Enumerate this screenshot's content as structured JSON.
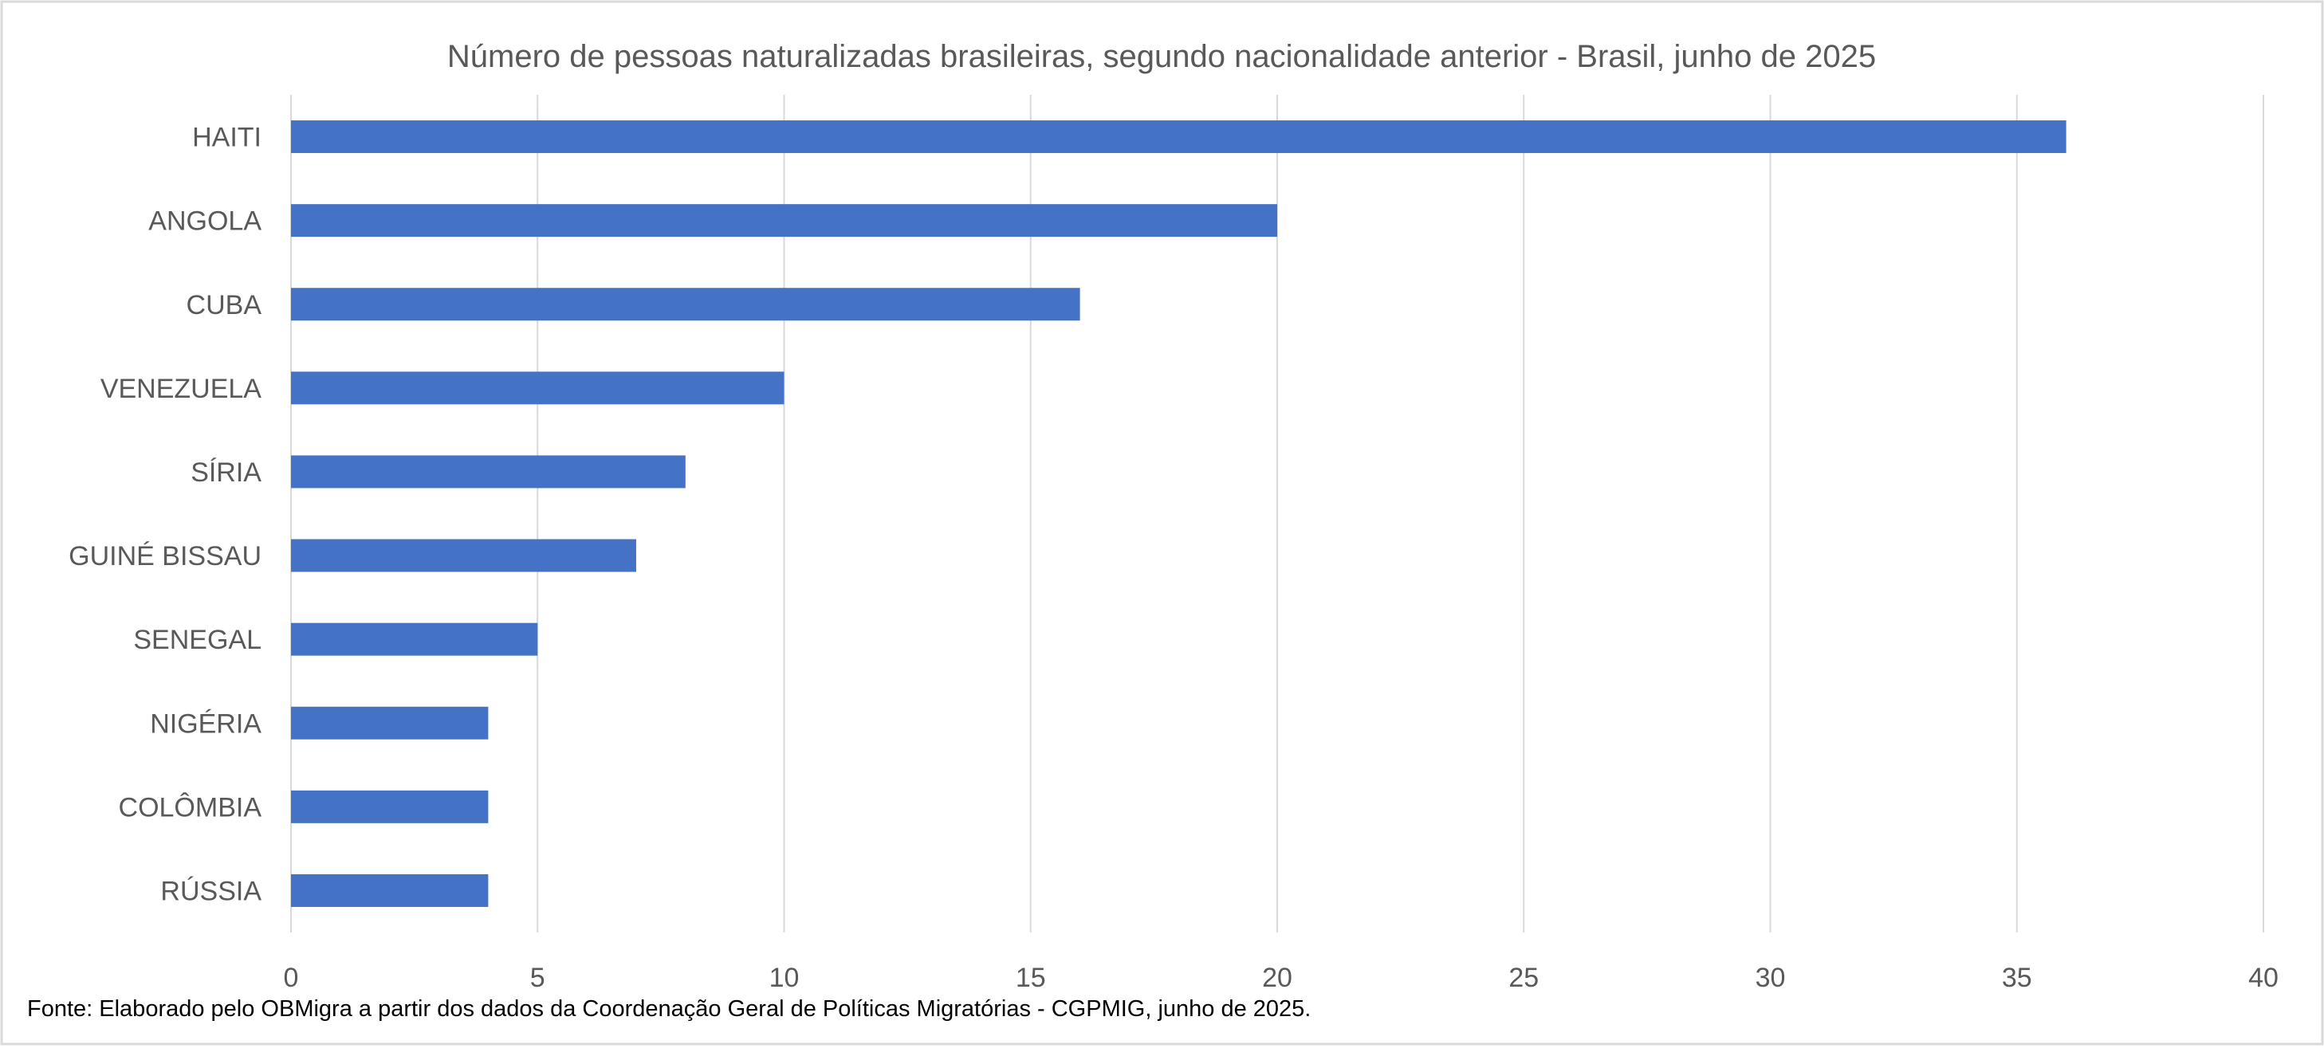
{
  "chart_data": {
    "type": "bar",
    "orientation": "horizontal",
    "title": "Número de pessoas naturalizadas brasileiras, segundo nacionalidade anterior - Brasil, junho de 2025",
    "categories": [
      "HAITI",
      "ANGOLA",
      "CUBA",
      "VENEZUELA",
      "SÍRIA",
      "GUINÉ BISSAU",
      "SENEGAL",
      "NIGÉRIA",
      "COLÔMBIA",
      "RÚSSIA"
    ],
    "values": [
      36,
      20,
      16,
      10,
      8,
      7,
      5,
      4,
      4,
      4
    ],
    "xlim": [
      0,
      40
    ],
    "xticks": [
      "0",
      "5",
      "10",
      "15",
      "20",
      "25",
      "30",
      "35",
      "40"
    ],
    "grid": true,
    "bar_color": "#4472C4",
    "xlabel": "",
    "ylabel": ""
  },
  "source": "Fonte: Elaborado pelo OBMigra a partir dos dados da Coordenação Geral de Políticas Migratórias - CGPMIG, junho de 2025."
}
